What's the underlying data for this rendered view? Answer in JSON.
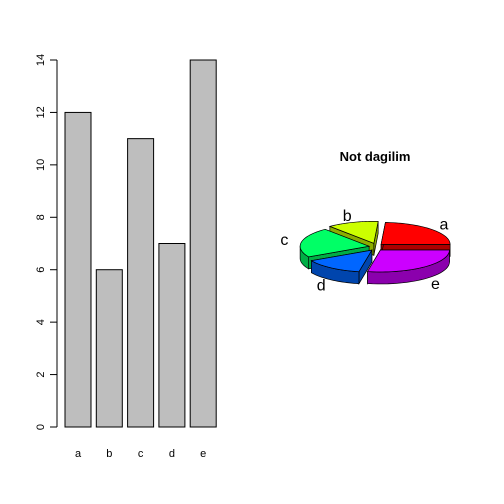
{
  "chart_data": [
    {
      "type": "bar",
      "categories": [
        "a",
        "b",
        "c",
        "d",
        "e"
      ],
      "values": [
        12,
        6,
        11,
        7,
        14
      ],
      "ylim": [
        0,
        14
      ],
      "yticks": [
        "0",
        "2",
        "4",
        "6",
        "8",
        "10",
        "12",
        "14"
      ],
      "ytick_values": [
        0,
        2,
        4,
        6,
        8,
        10,
        12,
        14
      ],
      "bar_color": "#bebebe",
      "title": "",
      "xlabel": "",
      "ylabel": ""
    },
    {
      "type": "pie",
      "style": "3d-exploded",
      "title": "Not dagilim",
      "labels": [
        "a",
        "b",
        "c",
        "d",
        "e"
      ],
      "values": [
        12,
        6,
        11,
        7,
        14
      ],
      "colors": [
        "#ff0000",
        "#ccff00",
        "#00ff66",
        "#0066ff",
        "#cc00ff"
      ]
    }
  ]
}
